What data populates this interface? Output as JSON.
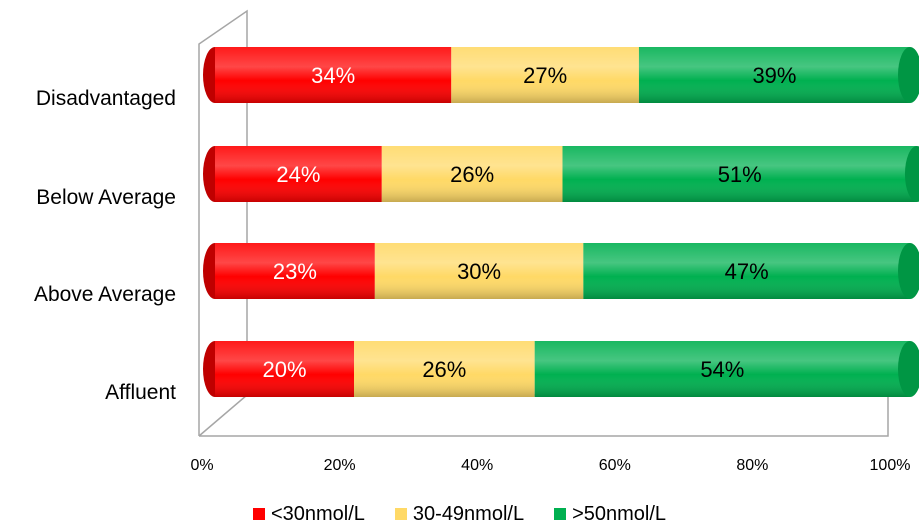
{
  "chart_data": {
    "type": "bar",
    "orientation": "horizontal",
    "stacked": "percent",
    "categories": [
      "Disadvantaged",
      "Below Average",
      "Above Average",
      "Affluent"
    ],
    "series": [
      {
        "name": "<30nmol/L",
        "color": "#ff0000",
        "text_color": "#ffffff",
        "values": [
          34,
          24,
          23,
          20
        ],
        "labels": [
          "34%",
          "24%",
          "23%",
          "20%"
        ]
      },
      {
        "name": "30-49nmol/L",
        "color": "#ffd966",
        "text_color": "#000000",
        "values": [
          27,
          26,
          30,
          26
        ],
        "labels": [
          "27%",
          "26%",
          "30%",
          "26%"
        ]
      },
      {
        "name": ">50nmol/L",
        "color": "#00b050",
        "text_color": "#000000",
        "values": [
          39,
          51,
          47,
          54
        ],
        "labels": [
          "39%",
          "51%",
          "47%",
          "54%"
        ]
      }
    ],
    "xlim": [
      0,
      100
    ],
    "xticks": [
      "0%",
      "20%",
      "40%",
      "60%",
      "80%",
      "100%"
    ],
    "title": "",
    "xlabel": "",
    "ylabel": "",
    "grid": false,
    "legend_position": "bottom"
  }
}
